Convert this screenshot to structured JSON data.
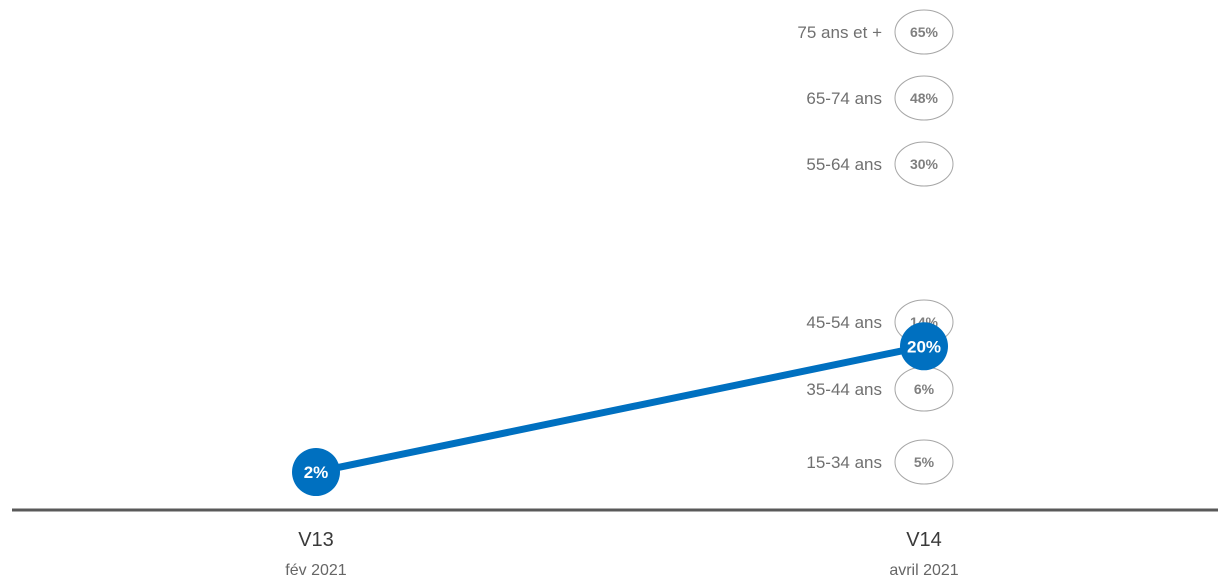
{
  "chart_data": {
    "type": "line",
    "title": "",
    "xlabel": "",
    "ylabel": "",
    "categories": [
      "V13",
      "V14"
    ],
    "category_dates": [
      "fév 2021",
      "avril 2021"
    ],
    "ylim": [
      0,
      65
    ],
    "grid": false,
    "series": [
      {
        "values": [
          2,
          20
        ],
        "labels": [
          "2%",
          "20%"
        ],
        "color": "#0070c0"
      }
    ],
    "age_groups": [
      {
        "label": "75 ans et +",
        "value": 65,
        "value_label": "65%"
      },
      {
        "label": "65-74 ans",
        "value": 48,
        "value_label": "48%"
      },
      {
        "label": "55-64 ans",
        "value": 30,
        "value_label": "30%"
      },
      {
        "label": "45-54 ans",
        "value": 14,
        "value_label": "14%"
      },
      {
        "label": "35-44 ans",
        "value": 6,
        "value_label": "6%"
      },
      {
        "label": "15-34 ans",
        "value": 5,
        "value_label": "5%"
      }
    ],
    "colors": {
      "series": "#0070c0",
      "axis": "#595959",
      "bubble_outline": "#a6a6a6"
    }
  }
}
